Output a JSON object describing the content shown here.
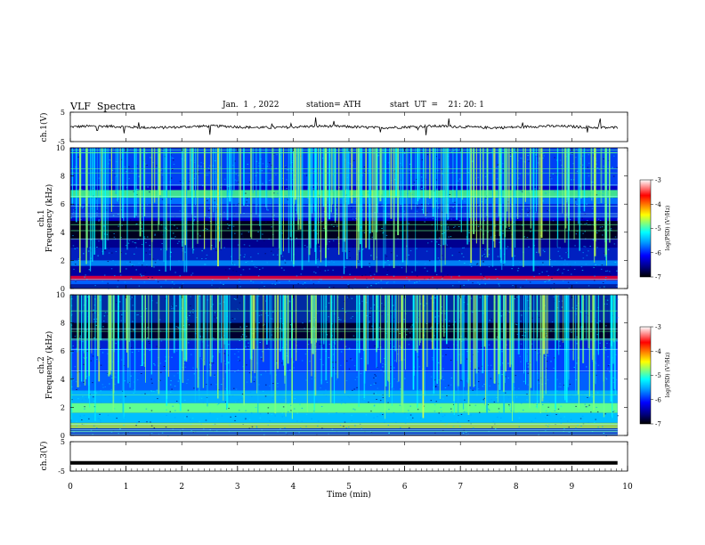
{
  "header": {
    "title": "VLF  Spectra",
    "date": "Jan.  1  , 2022",
    "station": "station= ATH",
    "start": "start  UT  =    21: 20: 1"
  },
  "colors": {
    "colormap": [
      "#000000",
      "#000080",
      "#0000ff",
      "#00a0ff",
      "#00ffff",
      "#7fff7f",
      "#ffff00",
      "#ff8000",
      "#ff0000",
      "#ffffff"
    ],
    "trace": "#000000"
  },
  "chart_data": [
    {
      "type": "line",
      "id": "ch1",
      "ylabel": "ch.1(V)",
      "ylim": [
        -5,
        5
      ],
      "yticks": [
        5,
        -5
      ],
      "xlim": [
        0,
        10
      ],
      "trace_level": 0,
      "trace_end": 9.82
    },
    {
      "type": "heatmap",
      "id": "ch1-spec",
      "ylabel": "ch.1\nFrequency  (kHz)",
      "ylabel_lines": [
        "ch.1",
        "Frequency  (kHz)"
      ],
      "yticks": [
        0,
        2,
        4,
        6,
        8,
        10
      ],
      "ylim": [
        0,
        10
      ],
      "xlim": [
        0,
        10
      ],
      "data_end": 9.82,
      "colorbar": {
        "label": "log(PSD) (V²/Hz)",
        "ticks": [
          -3,
          -4,
          -5,
          -6,
          -7
        ],
        "range": [
          -7,
          -3
        ]
      }
    },
    {
      "type": "heatmap",
      "id": "ch2-spec",
      "ylabel": "ch.2\nFrequency  (kHz)",
      "ylabel_lines": [
        "ch.2",
        "Frequency  (kHz)"
      ],
      "yticks": [
        0,
        2,
        4,
        6,
        8,
        10
      ],
      "ylim": [
        0,
        10
      ],
      "xlim": [
        0,
        10
      ],
      "data_end": 9.82,
      "colorbar": {
        "label": "log(PSD) (V²/Hz)",
        "ticks": [
          -3,
          -4,
          -5,
          -6,
          -7
        ],
        "range": [
          -7,
          -3
        ]
      }
    },
    {
      "type": "line",
      "id": "ch3",
      "ylabel": "ch.3(V)",
      "ylim": [
        -5,
        5
      ],
      "yticks": [
        5,
        -5
      ],
      "xlim": [
        0,
        10
      ],
      "trace_level": -2.2,
      "trace_end": 9.82
    }
  ],
  "xaxis": {
    "label": "Time  (min)",
    "ticks": [
      "0",
      "1",
      "2",
      "3",
      "4",
      "5",
      "6",
      "7",
      "8",
      "9",
      "10"
    ]
  }
}
